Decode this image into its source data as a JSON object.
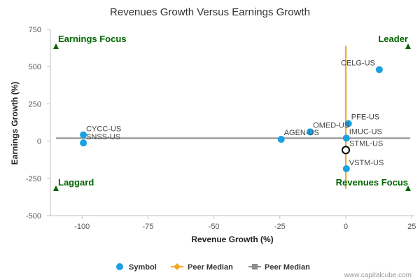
{
  "chart_data": {
    "type": "scatter",
    "title": "Revenues Growth Versus Earnings Growth",
    "xlabel": "Revenue Growth (%)",
    "ylabel": "Earnings Growth (%)",
    "xlim": [
      -112,
      26
    ],
    "ylim": [
      -500,
      750
    ],
    "x_ticks": [
      "-100",
      "-75",
      "-50",
      "-25",
      "0",
      "25"
    ],
    "y_ticks": [
      "750",
      "500",
      "250",
      "0",
      "-250",
      "-500"
    ],
    "x_tick_values": [
      -100,
      -75,
      -50,
      -25,
      0,
      25
    ],
    "y_tick_values": [
      750,
      500,
      250,
      0,
      -250,
      -500
    ],
    "grid": false,
    "points": [
      {
        "label": "CELG-US",
        "x": 12.7,
        "y": 480
      },
      {
        "label": "PFE-US",
        "x": 1.0,
        "y": 118
      },
      {
        "label": "OMED-US",
        "x": -13.5,
        "y": 62
      },
      {
        "label": "IMUC-US",
        "x": 0.2,
        "y": 20
      },
      {
        "label": "AGEN-US",
        "x": -24.5,
        "y": 12
      },
      {
        "label": "CYCC-US",
        "x": -99.5,
        "y": 42
      },
      {
        "label": "SNSS-US",
        "x": -99.5,
        "y": -12
      },
      {
        "label": "VSTM-US",
        "x": 0.2,
        "y": -185
      }
    ],
    "subject": {
      "label": "STML-US",
      "x": 0.0,
      "y": -60
    },
    "peer_median_vertical": {
      "x": 0.0,
      "y_from": -320,
      "y_to": 640,
      "color": "#f5a623"
    },
    "peer_median_horizontal": {
      "y": 20,
      "color": "#8c8c8c"
    },
    "quadrants": {
      "top_left": "Earnings Focus",
      "top_right": "Leader",
      "bottom_left": "Laggard",
      "bottom_right": "Revenues Focus"
    },
    "legend": {
      "placement": "bottom",
      "items": [
        {
          "name": "Symbol",
          "color": "#1ba1e2"
        },
        {
          "name": "Peer Median",
          "color": "#f5a623"
        },
        {
          "name": "Peer Median",
          "color": "#8c8c8c"
        }
      ]
    },
    "colors": {
      "point": "#1ba1e2",
      "quadrant": "#006400"
    }
  },
  "credit": "www.capitalcube.com"
}
